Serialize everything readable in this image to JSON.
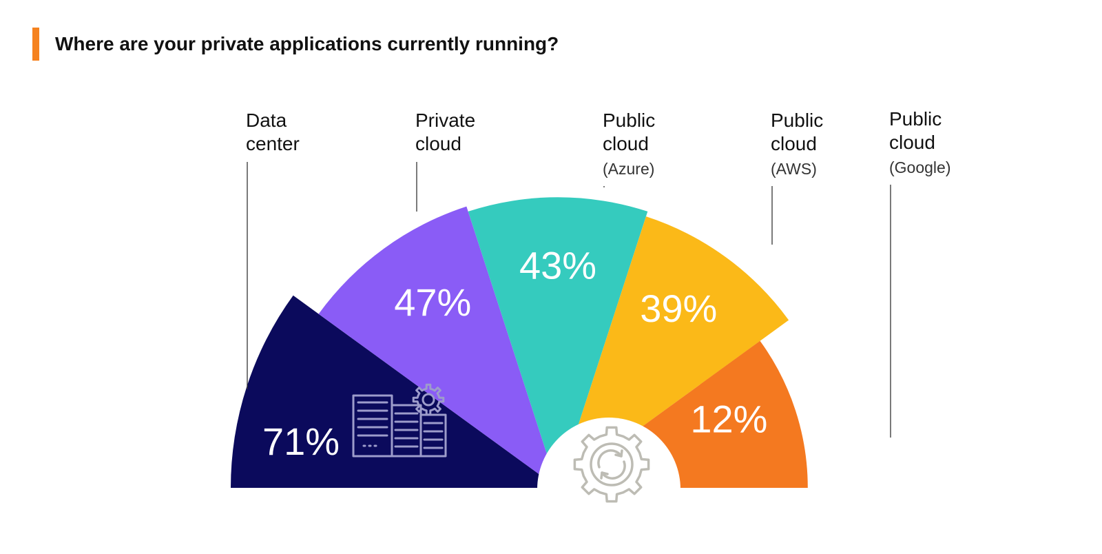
{
  "colors": {
    "accent": "#F5821F",
    "data_center": "#0B0A5C",
    "private_cloud": "#8A5CF6",
    "azure": "#35CBBE",
    "aws": "#FBB918",
    "google": "#F47920",
    "server_icon": "#9D9CCB",
    "gear_icon": "#BDBCB4"
  },
  "icons": {
    "data_center": "server-rack-gear-icon",
    "center": "gear-sync-icon"
  },
  "chart_data": {
    "type": "pie",
    "variant": "rose-semicircle",
    "title": "Where are your private applications currently running?",
    "slices": [
      {
        "label": [
          "Data",
          "center"
        ],
        "sublabel": "",
        "value": 71,
        "display": "71%",
        "color": "#0B0A5C"
      },
      {
        "label": [
          "Private",
          "cloud"
        ],
        "sublabel": "",
        "value": 47,
        "display": "47%",
        "color": "#8A5CF6"
      },
      {
        "label": [
          "Public",
          "cloud"
        ],
        "sublabel": "(Azure)",
        "value": 43,
        "display": "43%",
        "color": "#35CBBE"
      },
      {
        "label": [
          "Public",
          "cloud"
        ],
        "sublabel": "(AWS)",
        "value": 39,
        "display": "39%",
        "color": "#FBB918"
      },
      {
        "label": [
          "Public",
          "cloud"
        ],
        "sublabel": "(Google)",
        "value": 12,
        "display": "12%",
        "color": "#F47920"
      }
    ]
  }
}
